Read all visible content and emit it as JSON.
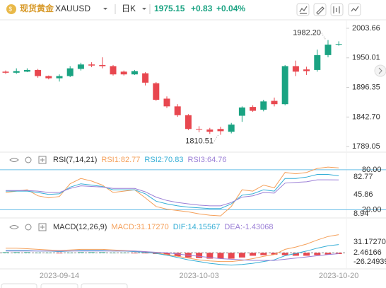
{
  "header": {
    "name": "现货黄金",
    "symbol": "XAUUSD",
    "period": "日K",
    "price": "1975.15",
    "change": "+0.83",
    "change_pct": "+0.04%"
  },
  "chart_data": [
    {
      "type": "candlestick",
      "categories": [
        null,
        null,
        null,
        null,
        null,
        "2023-09-14",
        null,
        null,
        null,
        null,
        null,
        null,
        null,
        null,
        null,
        null,
        null,
        null,
        "2023-10-03",
        null,
        null,
        null,
        null,
        null,
        null,
        null,
        null,
        null,
        null,
        null,
        null,
        "2023-10-20"
      ],
      "open": [
        1925,
        1923,
        1925,
        1928,
        1917,
        1913,
        1917,
        1930,
        1938,
        1937,
        1935,
        1925,
        1920,
        1922,
        1904,
        1876,
        1862,
        1846,
        1821,
        1820,
        1821,
        1816,
        1845,
        1861,
        1856,
        1872,
        1866,
        1935,
        1929,
        1928,
        1955,
        1974
      ],
      "high": [
        1927,
        1931,
        1931,
        1930,
        1918,
        1920,
        1935,
        1941,
        1942,
        1951,
        1937,
        1927,
        1928,
        1924,
        1906,
        1880,
        1866,
        1848,
        1826,
        1823,
        1825,
        1832,
        1862,
        1864,
        1874,
        1878,
        1937,
        1945,
        1934,
        1965,
        1982.2,
        1980
      ],
      "low": [
        1921,
        1921,
        1924,
        1914,
        1911,
        1907,
        1915,
        1927,
        1933,
        1931,
        1918,
        1918,
        1919,
        1900,
        1872,
        1859,
        1843,
        1819,
        1815,
        1812,
        1810.51,
        1813,
        1834,
        1852,
        1853,
        1862,
        1864,
        1917,
        1919,
        1925,
        1951,
        1972
      ],
      "close": [
        1923,
        1926,
        1928,
        1917,
        1913,
        1917,
        1931,
        1938,
        1936,
        1935,
        1920,
        1920,
        1926,
        1905,
        1874,
        1862,
        1846,
        1821,
        1820,
        1816,
        1817,
        1829,
        1860,
        1854,
        1871,
        1866,
        1935,
        1925,
        1926,
        1955,
        1974,
        1975.15
      ],
      "up_color": "#1aa382",
      "down_color": "#e8474f",
      "ylim": [
        1779,
        2019
      ],
      "yticks": [
        2003.66,
        1950.01,
        1896.35,
        {
          "value": 1842.7,
          "label": "1842.70"
        },
        1789.05
      ],
      "annotations": [
        {
          "value": 1982.2,
          "label": "1982.20"
        },
        {
          "value": 1810.51,
          "label": "1810.51"
        }
      ]
    },
    {
      "type": "line",
      "title": "RSI(7,14,21)",
      "series": [
        {
          "name": "RSI1:82.77",
          "color": "#f5a05a",
          "values": [
            46,
            48,
            50,
            41,
            38,
            40,
            59,
            67,
            63,
            57,
            46,
            48,
            50,
            38,
            25,
            21,
            19,
            17,
            14,
            12,
            11,
            25,
            50,
            48,
            57,
            53,
            76,
            74,
            76,
            82,
            84,
            82.77
          ]
        },
        {
          "name": "RSI2:70.83",
          "color": "#35aed6",
          "values": [
            48,
            48,
            48,
            46,
            43,
            44,
            54,
            59,
            57,
            55,
            50,
            50,
            50,
            44,
            33,
            29,
            26,
            24,
            23,
            22,
            22,
            29,
            42,
            44,
            50,
            48,
            67,
            67,
            69,
            73,
            73,
            70.83
          ]
        },
        {
          "name": "RSI3:64.76",
          "color": "#9b7fd6",
          "values": [
            49,
            49,
            49,
            48,
            46,
            46,
            52,
            56,
            55,
            54,
            52,
            52,
            52,
            47,
            39,
            34,
            31,
            29,
            27,
            26,
            26,
            31,
            39,
            41,
            46,
            45,
            60,
            61,
            62,
            65,
            65,
            64.76
          ]
        }
      ],
      "ylim": [
        10,
        100
      ],
      "yticks": [
        {
          "value": 80,
          "label": "80.00"
        },
        {
          "value": 20,
          "label": "20.00"
        }
      ],
      "right_labels": [
        "82.77",
        "45.86",
        "8.94"
      ]
    },
    {
      "type": "macd",
      "title": "MACD(12,26,9)",
      "series": [
        {
          "name": "MACD:31.17270",
          "color": "#f5a05a",
          "values": [
            8,
            8,
            7,
            6,
            5,
            4,
            5,
            6,
            6,
            6,
            5,
            4,
            3,
            2,
            0,
            -3,
            -6,
            -9,
            -12,
            -14,
            -15,
            -15,
            -13,
            -10,
            -6,
            -3,
            6,
            10,
            15,
            22,
            28,
            31.1727
          ]
        },
        {
          "name": "DIF:14.15567",
          "color": "#35aed6",
          "values": [
            4,
            4,
            4,
            3,
            3,
            2,
            3,
            4,
            4,
            4,
            3,
            3,
            2,
            1,
            -1,
            -4,
            -8,
            -12,
            -15,
            -18,
            -20,
            -21,
            -20,
            -18,
            -15,
            -12,
            -5,
            -1,
            3,
            8,
            12,
            14.15567
          ]
        },
        {
          "name": "DEA:-1.43068",
          "color": "#9b7fd6",
          "values": [
            3,
            3,
            3,
            3,
            3,
            3,
            3,
            3,
            3,
            3,
            3,
            3,
            3,
            2,
            1,
            0,
            -2,
            -4,
            -6,
            -8,
            -10,
            -11,
            -12,
            -13,
            -13,
            -13,
            -11,
            -9,
            -7,
            -5,
            -3,
            -1.43068
          ]
        }
      ],
      "histogram": {
        "values": [
          1,
          1,
          1,
          0,
          0,
          -1,
          0,
          1,
          1,
          1,
          0,
          0,
          -1,
          -1,
          -2,
          -4,
          -6,
          -8,
          -9,
          -10,
          -10,
          -10,
          -8,
          -5,
          -4,
          -3,
          -4,
          -5,
          -5,
          -4,
          -3,
          -2
        ],
        "up_color": "#1aa382",
        "down_color": "#e8474f"
      },
      "ylim": [
        -30,
        55
      ],
      "right_labels": [
        "31.17270",
        "2.46166",
        "-26.24939"
      ]
    }
  ]
}
